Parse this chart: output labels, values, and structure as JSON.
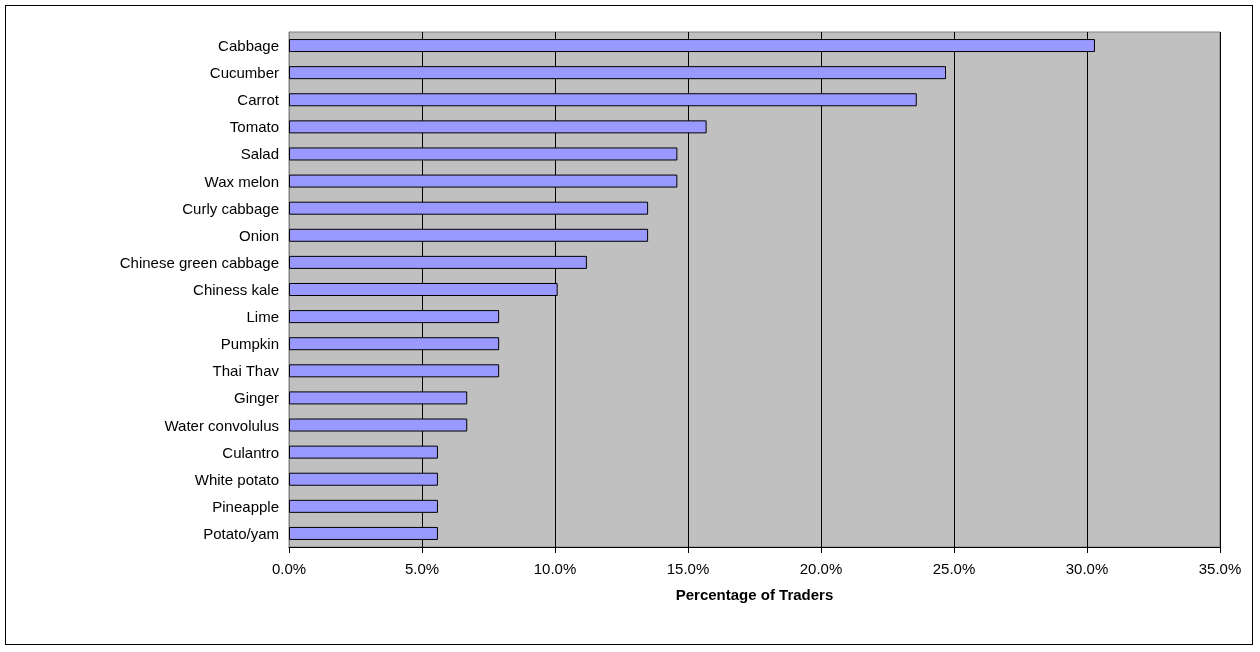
{
  "chart_data": {
    "type": "bar",
    "orientation": "horizontal",
    "xlabel": "Percentage of Traders",
    "categories": [
      "Cabbage",
      "Cucumber",
      "Carrot",
      "Tomato",
      "Salad",
      "Wax melon",
      "Curly cabbage",
      "Onion",
      "Chinese green cabbage",
      "Chiness kale",
      "Lime",
      "Pumpkin",
      "Thai Thav",
      "Ginger",
      "Water convolulus",
      "Culantro",
      "White potato",
      "Pineapple",
      "Potato/yam"
    ],
    "values": [
      30.3,
      24.7,
      23.6,
      15.7,
      14.6,
      14.6,
      13.5,
      13.5,
      11.2,
      10.1,
      7.9,
      7.9,
      7.9,
      6.7,
      6.7,
      5.6,
      5.6,
      5.6,
      5.6
    ],
    "color": "#9999ff",
    "xlim": [
      0,
      35
    ],
    "xticks": [
      {
        "value": 0,
        "label": "0.0%"
      },
      {
        "value": 5,
        "label": "5.0%"
      },
      {
        "value": 10,
        "label": "10.0%"
      },
      {
        "value": 15,
        "label": "15.0%"
      },
      {
        "value": 20,
        "label": "20.0%"
      },
      {
        "value": 25,
        "label": "25.0%"
      },
      {
        "value": 30,
        "label": "30.0%"
      },
      {
        "value": 35,
        "label": "35.0%"
      }
    ],
    "grid": "x"
  }
}
